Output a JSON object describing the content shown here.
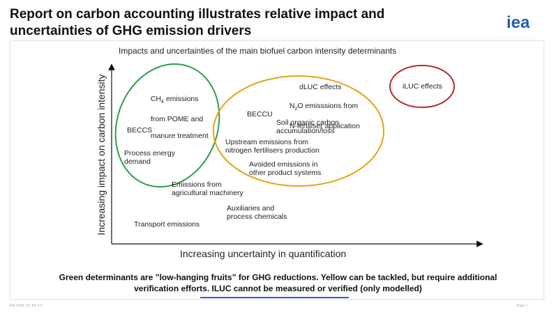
{
  "header": {
    "title_line1": "Report on carbon accounting illustrates relative impact and",
    "title_line2": "uncertainties of GHG emission drivers",
    "logo_text": "iea",
    "logo_color": "#1f5fb0"
  },
  "diagram": {
    "subtitle": "Impacts and uncertainties of the main biofuel carbon intensity determinants",
    "y_axis_label": "Increasing impact on carbon intensity",
    "x_axis_label": "Increasing uncertainty in quantification",
    "groups": [
      {
        "name": "green",
        "color": "#2e9e4e"
      },
      {
        "name": "yellow",
        "color": "#e2a514"
      },
      {
        "name": "red",
        "color": "#b32a2a"
      }
    ],
    "items": {
      "ch4_line1": "CH",
      "ch4_sub": "4",
      "ch4_line1_rest": " emissions",
      "ch4_line2": "from POME and",
      "ch4_line3": "manure treatment",
      "beccs": "BECCS",
      "process_energy": "Process energy\ndemand",
      "emissions_machinery": "Emissions from\nagricultural machinery",
      "auxiliaries": "Auxiliaries and\nprocess chemicals",
      "transport": "Transport emissions",
      "dluc": "dLUC effects",
      "n2o_line1_a": "N",
      "n2o_sub": "2",
      "n2o_line1_b": "O emisssions from",
      "n2o_line2": "N-fertiliser application",
      "beccu": "BECCU",
      "soil_carbon": "Soil organic carbon\naccumulation/loss",
      "upstream": "Upstream emissions from\nnitrogen fertilisers production",
      "avoided": "Avoided emissions in\nother product systems",
      "iluc": "iLUC effects"
    }
  },
  "note": {
    "line1": "Green determinants are ”low-hanging fruits” for GHG reductions. Yellow can be tackled, but require additional",
    "line2": "verification efforts. ILUC cannot be measured or verified (only modelled)"
  },
  "footer": {
    "left": "IEA 2024. CC BY 4.0",
    "right": "Page 7"
  }
}
